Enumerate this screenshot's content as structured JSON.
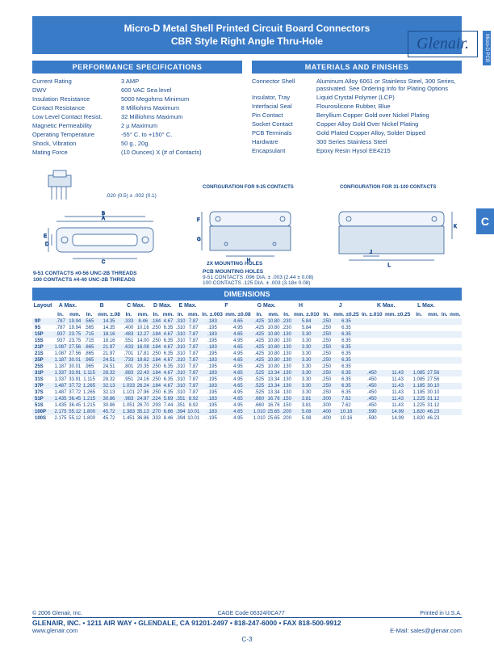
{
  "header": {
    "title_line1": "Micro-D Metal Shell Printed Circuit Board Connectors",
    "title_line2": "CBR Style Right Angle Thru-Hole"
  },
  "logo_text": "Glenair.",
  "side_tab": "Micro-D PCB",
  "side_tab_c": "C",
  "perf_spec": {
    "title": "PERFORMANCE  SPECIFICATIONS",
    "rows": [
      {
        "label": "Current Rating",
        "value": "3 AMP"
      },
      {
        "label": "DWV",
        "value": "600 VAC Sea level"
      },
      {
        "label": "Insulation Resistance",
        "value": "5000 Megohms Minimum"
      },
      {
        "label": "Contact Resistance",
        "value": "8 Milliohms Maximum"
      },
      {
        "label": "Low Level Contact Resist.",
        "value": "32 Milliohms Maximum"
      },
      {
        "label": "Magnetic Permeability",
        "value": "2 µ Maximum"
      },
      {
        "label": "Operating Temperature",
        "value": "-55° C. to +150° C."
      },
      {
        "label": "Shock, Vibration",
        "value": "50 g., 20g."
      },
      {
        "label": "Mating Force",
        "value": "(10 Ounces) X (# of Contacts)"
      }
    ]
  },
  "materials": {
    "title": "MATERIALS AND FINISHES",
    "rows": [
      {
        "label": "Connector Shell",
        "value": "Aluminum Alloy 6061 or Stainless Steel, 300 Series, passivated. See Ordering Info for Plating Options"
      },
      {
        "label": "Insulator, Tray",
        "value": "Liquid Crystal Polymer (LCP)"
      },
      {
        "label": "Interfacial Seal",
        "value": "Flourosilicone Rubber, Blue"
      },
      {
        "label": "Pin Contact",
        "value": "Beryllium Copper Gold over Nickel Plating"
      },
      {
        "label": "Socket Contact",
        "value": "Copper Alloy  Gold Over Nickel Plating"
      },
      {
        "label": "PCB Terminals",
        "value": "Gold Plated Copper Alloy, Solder Dipped"
      },
      {
        "label": "Hardware",
        "value": "300 Series Stainless Steel"
      },
      {
        "label": "Encapsulant",
        "value": "Epoxy Resin Hysol EE4215"
      }
    ]
  },
  "diagram_labels": {
    "tol": ".020 (0.5) ± .002 (0.1)",
    "threads1": "9-51 CONTACTS #0-56 UNC-2B THREADS",
    "threads2": "100 CONTACTS #4-40 UNC-2B THREADS",
    "config1": "CONFIGURATION FOR 9-25 CONTACTS",
    "config2": "CONFIGURATION FOR 31-100 CONTACTS",
    "mount": "2X MOUNTING HOLES",
    "pcb1": "PCB MOUNTING HOLES",
    "pcb2": "9-51 CONTACTS .096 DIA. ± .003 (2.44 ± 0.08)",
    "pcb3": "100 CONTACTS .125 DIA. ± .003 (3.18± 0.08)"
  },
  "dimensions": {
    "title": "DIMENSIONS",
    "group_heads": [
      "Layout",
      "A Max.",
      "B",
      "C Max.",
      "D Max.",
      "E Max.",
      "F",
      "G Max.",
      "H",
      "J",
      "K Max.",
      "L Max."
    ],
    "unit_heads": [
      "",
      "In.",
      "mm.",
      "In.",
      "mm. ±.08",
      "In.",
      "mm.",
      "In.",
      "mm.",
      "In.",
      "mm.",
      "In. ±.003",
      "mm. ±0.08",
      "In.",
      "mm.",
      "In.",
      "mm. ±.010",
      "In.",
      "mm. ±0.25",
      "In. ±.010",
      "mm. ±0.25",
      "In.",
      "mm.",
      "In.",
      "mm."
    ],
    "rows": [
      [
        "9P",
        ".787",
        "19.94",
        ".565",
        "14.35",
        ".333",
        "8.46",
        ".184",
        "4.67",
        ".310",
        "7.87",
        ".183",
        "4.65",
        ".425",
        "10.80",
        ".230",
        "5.84",
        ".250",
        "6.35",
        "",
        "",
        "",
        ""
      ],
      [
        "9S",
        ".787",
        "19.94",
        ".565",
        "14.35",
        ".400",
        "10.16",
        ".250",
        "6.35",
        ".310",
        "7.87",
        ".195",
        "4.95",
        ".425",
        "10.80",
        ".230",
        "5.84",
        ".250",
        "6.35",
        "",
        "",
        "",
        ""
      ],
      [
        "15P",
        ".937",
        "23.75",
        ".715",
        "18.16",
        ".483",
        "12.27",
        ".184",
        "4.67",
        ".310",
        "7.87",
        ".183",
        "4.65",
        ".425",
        "10.80",
        ".130",
        "3.30",
        ".250",
        "6.35",
        "",
        "",
        "",
        ""
      ],
      [
        "15S",
        ".937",
        "23.75",
        ".715",
        "18.16",
        ".551",
        "14.00",
        ".250",
        "6.35",
        ".310",
        "7.87",
        ".195",
        "4.95",
        ".425",
        "10.80",
        ".130",
        "3.30",
        ".250",
        "6.35",
        "",
        "",
        "",
        ""
      ],
      [
        "21P",
        "1.087",
        "27.56",
        ".865",
        "21.97",
        ".633",
        "16.08",
        ".184",
        "4.67",
        ".310",
        "7.87",
        ".183",
        "4.65",
        ".425",
        "10.80",
        ".130",
        "3.30",
        ".250",
        "6.35",
        "",
        "",
        "",
        ""
      ],
      [
        "21S",
        "1.087",
        "27.56",
        ".865",
        "21.97",
        ".701",
        "17.81",
        ".250",
        "6.35",
        ".310",
        "7.87",
        ".195",
        "4.95",
        ".425",
        "10.80",
        ".130",
        "3.30",
        ".250",
        "6.35",
        "",
        "",
        "",
        ""
      ],
      [
        "25P",
        "1.187",
        "30.01",
        ".965",
        "24.51",
        ".733",
        "18.62",
        ".184",
        "4.67",
        ".310",
        "7.87",
        ".183",
        "4.65",
        ".425",
        "10.80",
        ".130",
        "3.30",
        ".250",
        "6.35",
        "",
        "",
        "",
        ""
      ],
      [
        "25S",
        "1.187",
        "30.01",
        ".965",
        "24.51",
        ".801",
        "20.35",
        ".250",
        "6.35",
        ".310",
        "7.87",
        ".195",
        "4.95",
        ".425",
        "10.80",
        ".130",
        "3.30",
        ".250",
        "6.35",
        "",
        "",
        "",
        ""
      ],
      [
        "31P",
        "1.337",
        "33.91",
        "1.115",
        "28.32",
        ".883",
        "22.43",
        ".184",
        "4.67",
        ".310",
        "7.87",
        ".183",
        "4.65",
        ".525",
        "13.34",
        ".130",
        "3.30",
        ".250",
        "6.35",
        ".450",
        "11.43",
        "1.085",
        "27.56"
      ],
      [
        "31S",
        "1.337",
        "33.91",
        "1.115",
        "28.32",
        ".951",
        "24.16",
        ".250",
        "6.35",
        ".310",
        "7.87",
        ".195",
        "4.95",
        ".525",
        "13.34",
        ".130",
        "3.30",
        ".250",
        "6.35",
        ".450",
        "11.43",
        "1.085",
        "27.56"
      ],
      [
        "37P",
        "1.487",
        "37.72",
        "1.265",
        "32.13",
        "1.033",
        "26.24",
        ".184",
        "4.67",
        ".310",
        "7.87",
        ".183",
        "4.65",
        ".525",
        "13.34",
        ".130",
        "3.30",
        ".250",
        "6.35",
        ".450",
        "11.43",
        "1.185",
        "30.10"
      ],
      [
        "37S",
        "1.487",
        "37.72",
        "1.265",
        "32.13",
        "1.101",
        "27.96",
        ".250",
        "6.35",
        ".310",
        "7.87",
        ".195",
        "4.95",
        ".525",
        "13.34",
        ".130",
        "3.30",
        ".250",
        "6.35",
        ".450",
        "11.43",
        "1.185",
        "30.10"
      ],
      [
        "51P",
        "1.435",
        "36.45",
        "1.215",
        "30.86",
        ".983",
        "24.97",
        ".224",
        "5.69",
        ".351",
        "8.92",
        ".183",
        "4.65",
        ".660",
        "16.76",
        ".150",
        "3.81",
        ".300",
        "7.62",
        ".450",
        "11.43",
        "1.225",
        "31.12"
      ],
      [
        "51S",
        "1.435",
        "36.45",
        "1.215",
        "30.86",
        "1.051",
        "26.70",
        ".293",
        "7.44",
        ".351",
        "8.92",
        ".195",
        "4.95",
        ".660",
        "16.76",
        ".150",
        "3.81",
        ".300",
        "7.62",
        ".450",
        "11.43",
        "1.225",
        "31.12"
      ],
      [
        "100P",
        "2.175",
        "55.12",
        "1.800",
        "45.72",
        "1.383",
        "35.13",
        ".270",
        "6.86",
        ".394",
        "10.01",
        ".183",
        "4.65",
        "1.010",
        "25.65",
        ".200",
        "5.08",
        ".400",
        "10.16",
        ".590",
        "14.99",
        "1.820",
        "46.23"
      ],
      [
        "100S",
        "2.175",
        "55.12",
        "1.800",
        "45.72",
        "1.451",
        "36.86",
        ".333",
        "8.46",
        ".394",
        "10.01",
        ".195",
        "4.95",
        "1.010",
        "25.65",
        ".200",
        "5.08",
        ".400",
        "10.16",
        ".590",
        "14.99",
        "1.820",
        "46.23"
      ]
    ]
  },
  "footer": {
    "copyright": "© 2006 Glenair, Inc.",
    "cage": "CAGE Code 06324/0CA77",
    "printed": "Printed in U.S.A.",
    "addr": "GLENAIR, INC. • 1211 AIR WAY • GLENDALE, CA 91201-2497 • 818-247-6000 • FAX 818-500-9912",
    "web": "www.glenair.com",
    "email": "E-Mail: sales@glenair.com",
    "page": "C-3"
  }
}
